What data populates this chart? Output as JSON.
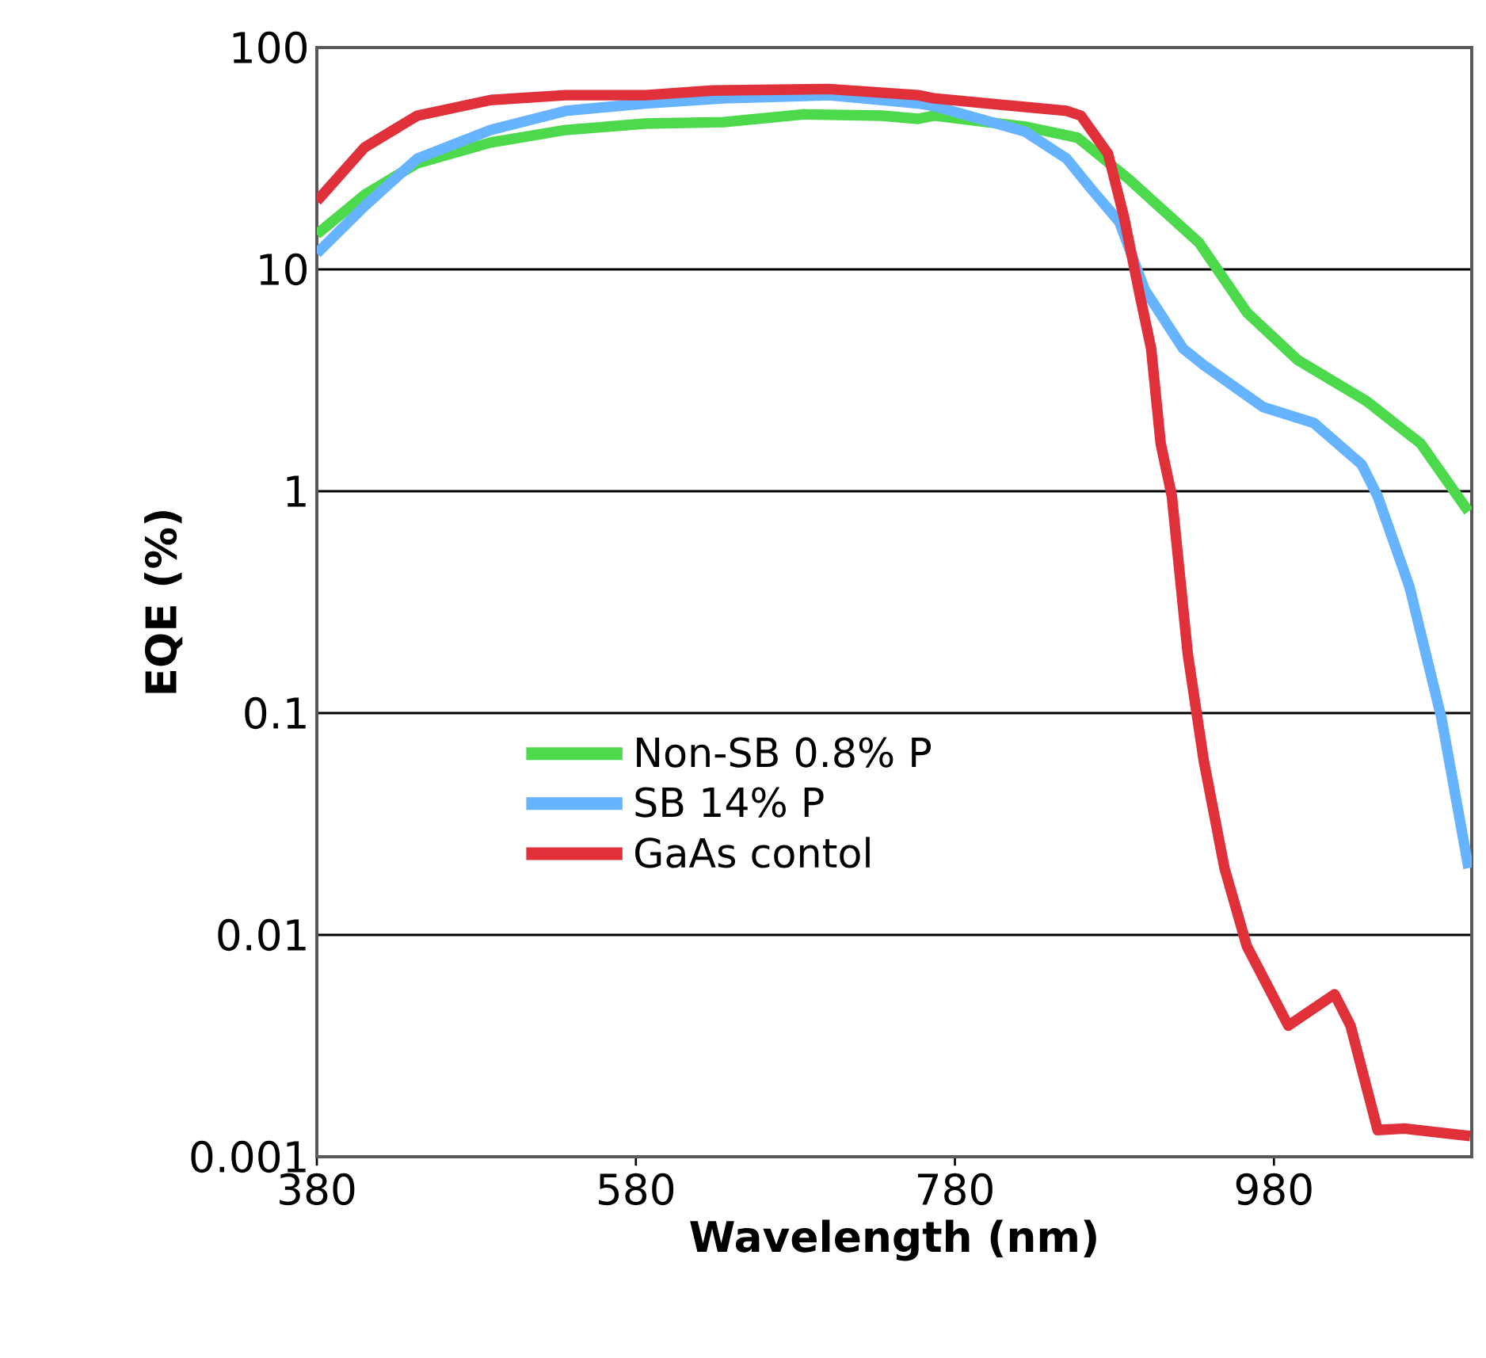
{
  "chart_data": {
    "type": "line",
    "xlabel": "Wavelength (nm)",
    "ylabel": "EQE (%)",
    "log": "y",
    "grid": "y",
    "legend": "left",
    "line_style": "solid",
    "marker": "none",
    "xlim": [
      380,
      1104
    ],
    "xticks": [
      380,
      580,
      780,
      980
    ],
    "ylim": [
      0.001,
      100
    ],
    "yticks": [
      {
        "value": 0.001,
        "label": "0.001"
      },
      {
        "value": 0.01,
        "label": "0.01"
      },
      {
        "value": 0.1,
        "label": "0.1"
      },
      {
        "value": 1,
        "label": "1"
      },
      {
        "value": 10,
        "label": "10"
      },
      {
        "value": 100,
        "label": "100"
      }
    ],
    "series": [
      {
        "name": "Non-SB 0.8% P",
        "color": "#4cd94c",
        "x": [
          380,
          410,
          443,
          489,
          536,
          586,
          635,
          685,
          734,
          757,
          767,
          824,
          857,
          889,
          933,
          963,
          995,
          1038,
          1072,
          1102
        ],
        "values": [
          14.4,
          21.7,
          30.1,
          37.3,
          42.5,
          45.4,
          46.1,
          50,
          49.3,
          47.7,
          49.3,
          44,
          39.2,
          25.5,
          13.2,
          6.4,
          3.9,
          2.55,
          1.64,
          0.81
        ]
      },
      {
        "name": "SB 14% P",
        "color": "#66b3ff",
        "x": [
          380,
          410,
          443,
          489,
          536,
          586,
          635,
          701,
          757,
          767,
          824,
          850,
          866,
          883,
          899,
          923,
          936,
          973,
          1005,
          1035,
          1045,
          1065,
          1085,
          1102
        ],
        "values": [
          11.8,
          19.3,
          31.6,
          42.5,
          51.8,
          56,
          59,
          61,
          56,
          54.5,
          41.8,
          31.6,
          22.8,
          16.4,
          8.1,
          4.4,
          3.7,
          2.4,
          2.03,
          1.32,
          0.95,
          0.37,
          0.095,
          0.02
        ]
      },
      {
        "name": "GaAs contol",
        "color": "#e0303a",
        "x": [
          380,
          410,
          443,
          489,
          536,
          586,
          628,
          701,
          757,
          767,
          850,
          859,
          876,
          886,
          896,
          903,
          909,
          916,
          926,
          936,
          949,
          963,
          989,
          1018,
          1028,
          1045,
          1062,
          1103
        ],
        "values": [
          20.3,
          35.5,
          49.3,
          58,
          61,
          61,
          64,
          65,
          61,
          59,
          51.8,
          49.3,
          33.2,
          17.2,
          7.6,
          4.4,
          1.64,
          0.95,
          0.184,
          0.061,
          0.02,
          0.0089,
          0.0039,
          0.0054,
          0.0039,
          0.00132,
          0.00134,
          0.00124
        ]
      }
    ]
  }
}
